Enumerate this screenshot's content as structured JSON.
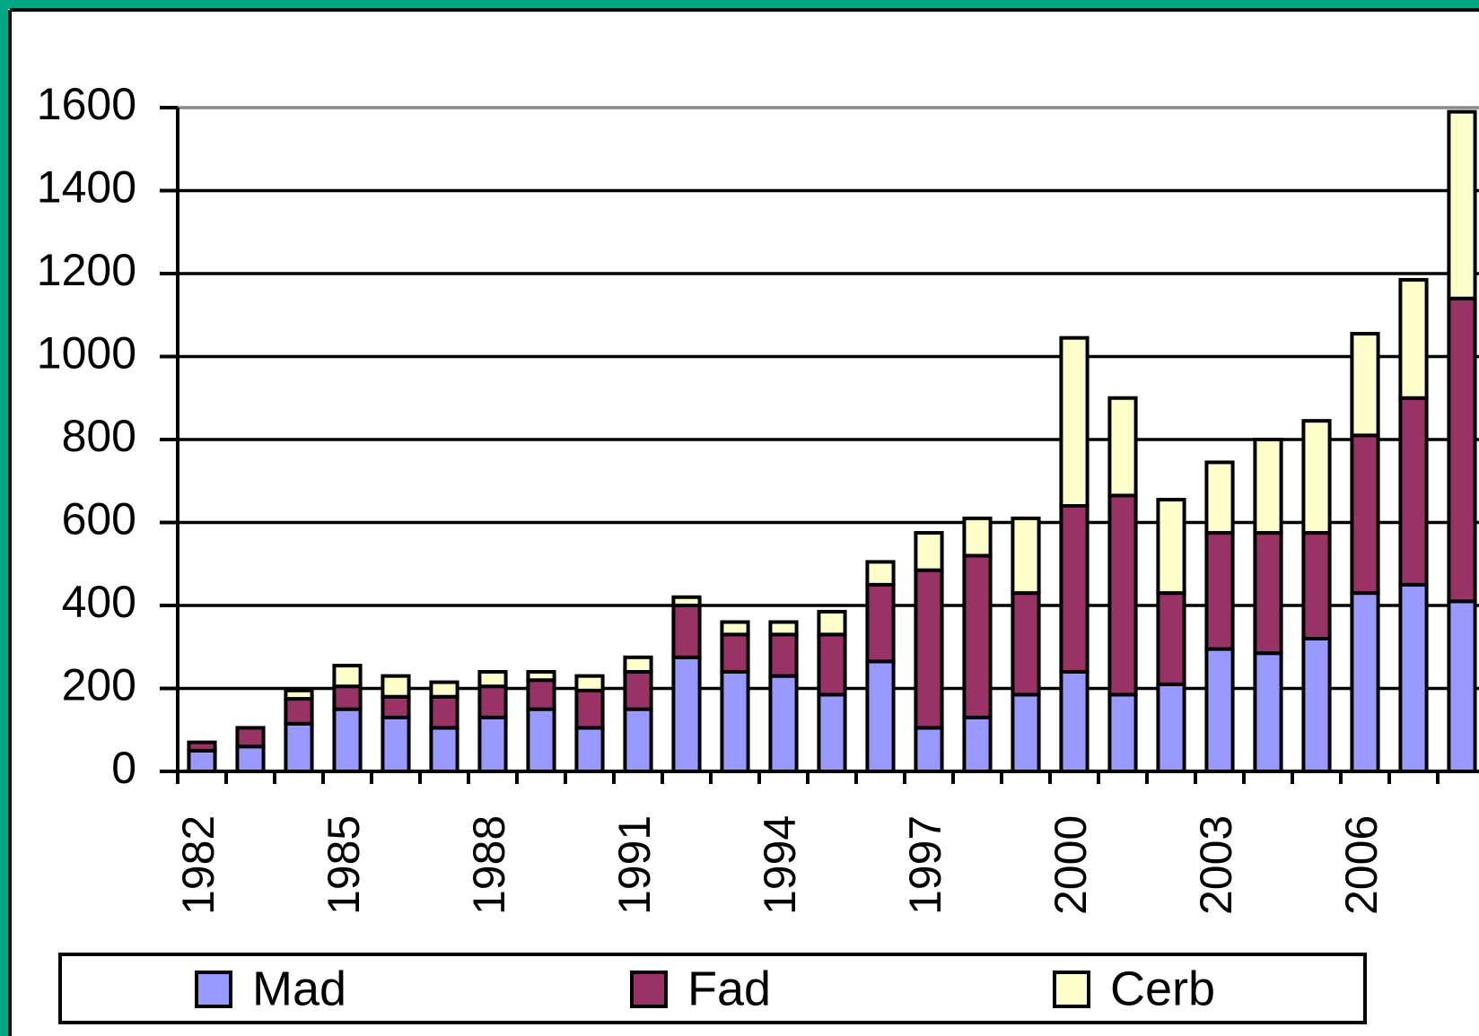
{
  "chart_data": {
    "type": "stacked_bar",
    "categories": [
      "1982",
      null,
      null,
      "1985",
      null,
      null,
      "1988",
      null,
      null,
      "1991",
      null,
      null,
      "1994",
      null,
      null,
      "1997",
      null,
      null,
      "2000",
      null,
      null,
      "2003",
      null,
      null,
      "2006",
      null,
      null
    ],
    "series": [
      {
        "name": "Mad",
        "color": "#9999ff",
        "values": [
          50,
          60,
          115,
          150,
          130,
          105,
          130,
          150,
          105,
          150,
          275,
          240,
          230,
          185,
          265,
          105,
          130,
          185,
          240,
          185,
          210,
          295,
          285,
          320,
          430,
          450,
          410
        ]
      },
      {
        "name": "Fad",
        "color": "#993366",
        "values": [
          20,
          45,
          60,
          55,
          50,
          75,
          75,
          70,
          90,
          90,
          125,
          90,
          100,
          145,
          185,
          380,
          390,
          245,
          400,
          480,
          220,
          280,
          290,
          255,
          380,
          450,
          730
        ]
      },
      {
        "name": "Cerb",
        "color": "#ffffcc",
        "values": [
          0,
          0,
          20,
          50,
          50,
          35,
          35,
          20,
          35,
          35,
          20,
          30,
          30,
          55,
          55,
          90,
          90,
          180,
          405,
          235,
          225,
          170,
          225,
          270,
          245,
          285,
          450
        ]
      }
    ],
    "ylim": [
      0,
      1600
    ],
    "yticks": [
      0,
      200,
      400,
      600,
      800,
      1000,
      1200,
      1400,
      1600
    ],
    "grid": true
  }
}
